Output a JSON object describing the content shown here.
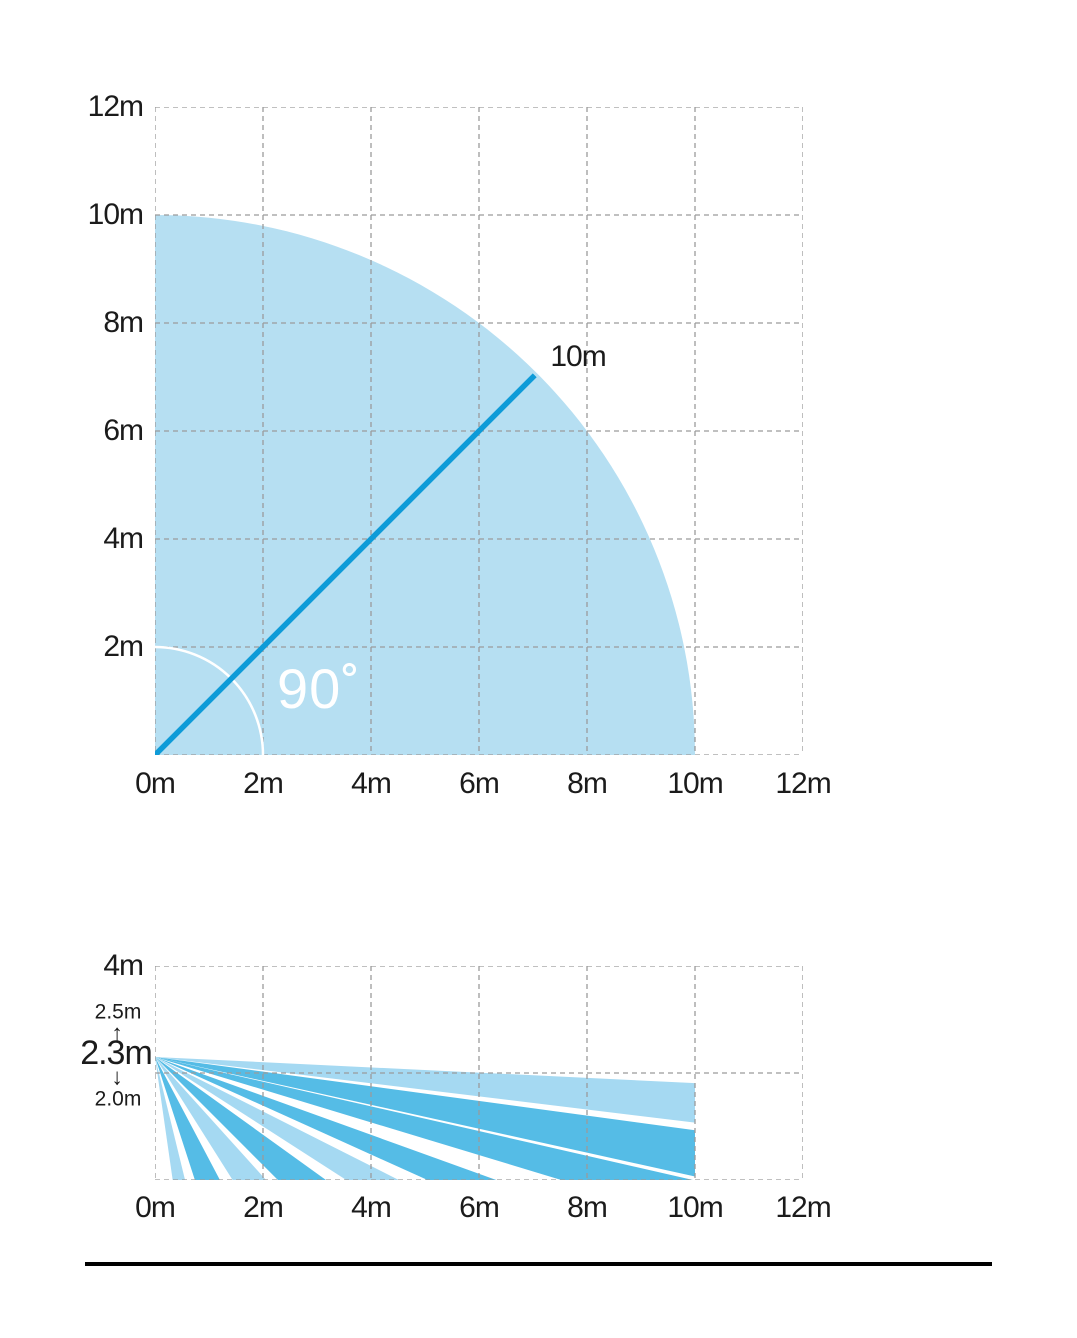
{
  "colors": {
    "background": "#ffffff",
    "area_fill": "#B6DFF2",
    "beam_light": "#A5D9F2",
    "beam_medium": "#55BCE6",
    "accent_line": "#0E9BD8",
    "grid": "#9B9B9B",
    "arc_stroke": "#ffffff",
    "text": "#1b1b1b",
    "divider": "#000000"
  },
  "chart_data": [
    {
      "id": "top-view",
      "type": "area",
      "shape": "quarter-circle-sector",
      "description": "Detection area, top view: 90 degree sector with 10 m radius",
      "angle_deg": 90,
      "radius_m": 10,
      "inner_arc_radius_m": 2,
      "xlim_m": [
        0,
        12
      ],
      "ylim_m": [
        0,
        12
      ],
      "grid_step_m": 2,
      "grid_style": "dashed",
      "x_tick_labels": [
        "0m",
        "2m",
        "4m",
        "6m",
        "8m",
        "10m",
        "12m"
      ],
      "y_tick_labels": [
        "12m",
        "10m",
        "8m",
        "6m",
        "4m",
        "2m"
      ],
      "annotations": {
        "radius_label": "10m",
        "angle_label": "90˚"
      }
    },
    {
      "id": "side-view",
      "type": "area",
      "shape": "beam-fan",
      "description": "Detection area, side view: beams from sensor mounted at 2.3 m (2.0-2.5 m), range 10 m",
      "mount_height_m": 2.3,
      "max_range_m": 10,
      "xlim_m": [
        0,
        12
      ],
      "ylim_m": [
        0,
        4
      ],
      "grid_step_m": 2,
      "grid_style": "dashed",
      "x_tick_labels": [
        "0m",
        "2m",
        "4m",
        "6m",
        "8m",
        "10m",
        "12m"
      ],
      "y_tick_labels": [
        "4m"
      ],
      "annotations": {
        "height_max": "2.5m",
        "arrow_up": "↑",
        "height": "2.3m",
        "arrow_down": "↓",
        "height_min": "2.0m"
      },
      "beams_deg_below_horizontal": [
        {
          "shade": "light",
          "from": 2.8,
          "to": 7.0
        },
        {
          "shade": "medium",
          "from": 7.8,
          "to": 12.6
        },
        {
          "shade": "medium",
          "from": 13.0,
          "to": 17.0
        },
        {
          "shade": "medium",
          "from": 20.0,
          "to": 24.5
        },
        {
          "shade": "light",
          "from": 27.0,
          "to": 33.0
        },
        {
          "shade": "medium",
          "from": 36.0,
          "to": 45.3
        },
        {
          "shade": "light",
          "from": 48.2,
          "to": 58.0
        },
        {
          "shade": "medium",
          "from": 62.4,
          "to": 72.2
        },
        {
          "shade": "light",
          "from": 76.4,
          "to": 81.9
        }
      ]
    }
  ]
}
